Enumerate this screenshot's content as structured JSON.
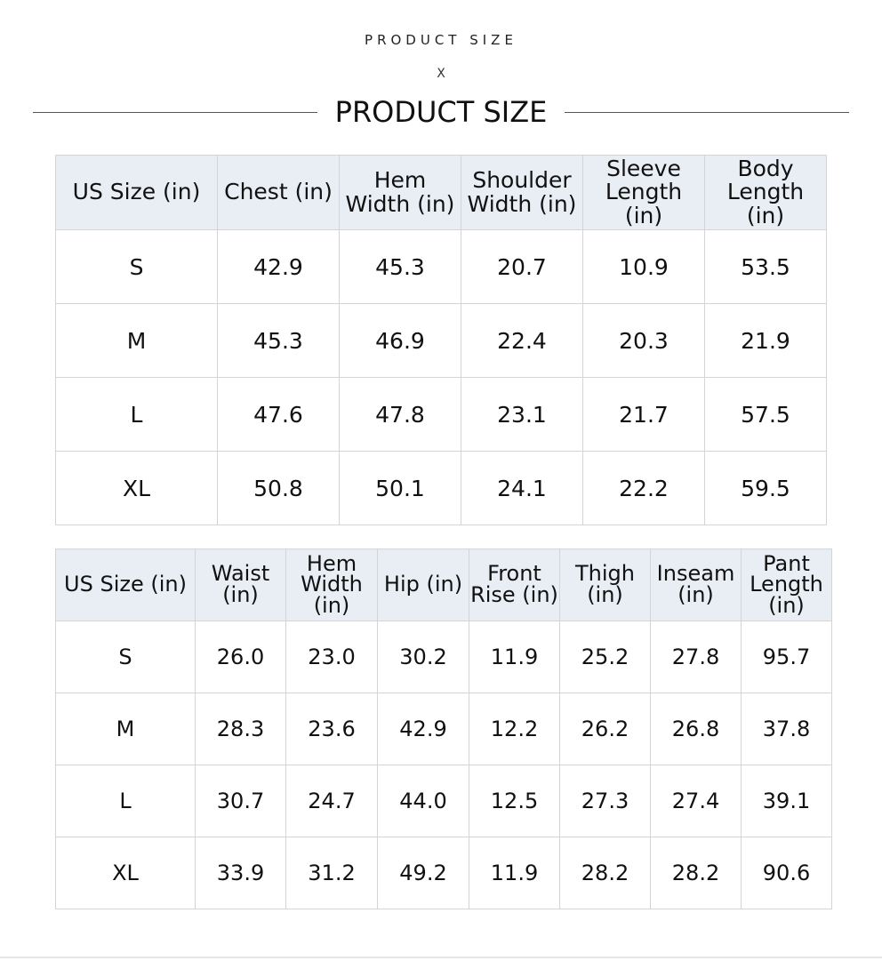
{
  "header": {
    "kicker": "PRODUCT SIZE",
    "cross": "X",
    "title": "PRODUCT SIZE"
  },
  "top_table": {
    "columns": [
      "US Size (in)",
      "Chest (in)",
      "Hem Width (in)",
      "Shoulder Width (in)",
      "Sleeve Length (in)",
      "Body Length (in)"
    ],
    "rows": [
      [
        "S",
        "42.9",
        "45.3",
        "20.7",
        "10.9",
        "53.5"
      ],
      [
        "M",
        "45.3",
        "46.9",
        "22.4",
        "20.3",
        "21.9"
      ],
      [
        "L",
        "47.6",
        "47.8",
        "23.1",
        "21.7",
        "57.5"
      ],
      [
        "XL",
        "50.8",
        "50.1",
        "24.1",
        "22.2",
        "59.5"
      ]
    ]
  },
  "bottom_table": {
    "columns": [
      "US Size (in)",
      "Waist (in)",
      "Hem Width (in)",
      "Hip (in)",
      "Front Rise (in)",
      "Thigh (in)",
      "Inseam (in)",
      "Pant Length (in)"
    ],
    "rows": [
      [
        "S",
        "26.0",
        "23.0",
        "30.2",
        "11.9",
        "25.2",
        "27.8",
        "95.7"
      ],
      [
        "M",
        "28.3",
        "23.6",
        "42.9",
        "12.2",
        "26.2",
        "26.8",
        "37.8"
      ],
      [
        "L",
        "30.7",
        "24.7",
        "44.0",
        "12.5",
        "27.3",
        "27.4",
        "39.1"
      ],
      [
        "XL",
        "33.9",
        "31.2",
        "49.2",
        "11.9",
        "28.2",
        "28.2",
        "90.6"
      ]
    ]
  }
}
